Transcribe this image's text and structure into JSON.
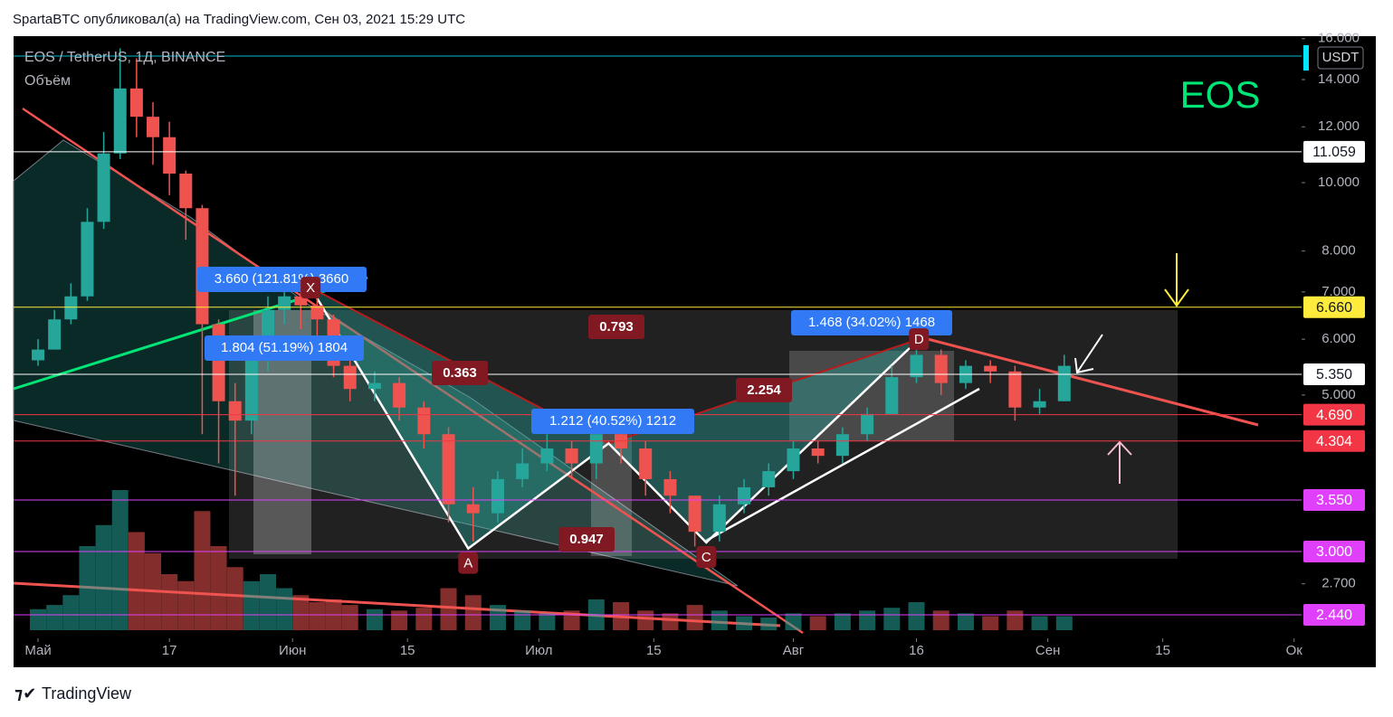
{
  "header": {
    "publisher": "SpartaBTC опубликовал(а) на TradingView.com, Сен 03, 2021 15:29 UTC",
    "footer": "TradingView"
  },
  "chart_data": {
    "type": "candlestick",
    "title": "EOS / TetherUS, 1Д, BINANCE",
    "subtitle": "Объём",
    "symbol_label": "EOS",
    "currency": "USDT",
    "log_scale": true,
    "grid": false,
    "up_color": "#26a69a",
    "down_color": "#ef5350",
    "xlim": [
      -2.98,
      153.91
    ],
    "ylim": [
      2.26,
      16.13
    ],
    "xticks": [
      {
        "value": 0,
        "label": "Май"
      },
      {
        "value": 16,
        "label": "17"
      },
      {
        "value": 31,
        "label": "Июн"
      },
      {
        "value": 45,
        "label": "15"
      },
      {
        "value": 61,
        "label": "Июл"
      },
      {
        "value": 75,
        "label": "15"
      },
      {
        "value": 92,
        "label": "Авг"
      },
      {
        "value": 107,
        "label": "16"
      },
      {
        "value": 123,
        "label": "Сен"
      },
      {
        "value": 137,
        "label": "15"
      },
      {
        "value": 153,
        "label": "Ок"
      }
    ],
    "yticks": [
      {
        "value": 16,
        "label": "16.000"
      },
      {
        "value": 14,
        "label": "14.000"
      },
      {
        "value": 12,
        "label": "12.000"
      },
      {
        "value": 10,
        "label": "10.000"
      },
      {
        "value": 8,
        "label": "8.000"
      },
      {
        "value": 7,
        "label": "7.000"
      },
      {
        "value": 6,
        "label": "6.000"
      },
      {
        "value": 5,
        "label": "5.000"
      },
      {
        "value": 2.7,
        "label": "2.700"
      }
    ],
    "x": [
      0,
      2,
      4,
      6,
      8,
      10,
      12,
      14,
      16,
      18,
      20,
      22,
      24,
      26,
      28,
      30,
      32,
      34,
      36,
      38,
      41,
      44,
      47,
      50,
      53,
      56,
      59,
      62,
      65,
      68,
      71,
      74,
      77,
      80,
      83,
      86,
      89,
      92,
      95,
      98,
      101,
      104,
      107,
      110,
      113,
      116,
      119,
      122,
      125
    ],
    "open": [
      5.6,
      5.8,
      6.4,
      6.9,
      8.8,
      11.0,
      13.6,
      12.4,
      11.6,
      10.3,
      9.2,
      6.3,
      4.9,
      4.6,
      5.6,
      6.6,
      6.9,
      6.7,
      6.4,
      5.5,
      5.1,
      5.2,
      4.8,
      4.4,
      3.5,
      3.4,
      3.8,
      4.0,
      4.2,
      4.0,
      4.4,
      4.2,
      3.8,
      3.6,
      3.2,
      3.5,
      3.7,
      3.9,
      4.2,
      4.1,
      4.4,
      4.7,
      5.3,
      5.7,
      5.2,
      5.5,
      5.4,
      4.8,
      4.9
    ],
    "high": [
      6.0,
      6.6,
      7.2,
      9.2,
      11.8,
      15.5,
      15.0,
      13.0,
      12.2,
      10.4,
      9.3,
      6.4,
      5.2,
      5.9,
      6.9,
      7.3,
      7.1,
      6.9,
      6.5,
      5.6,
      5.4,
      5.3,
      4.9,
      4.5,
      3.7,
      3.9,
      4.2,
      4.4,
      4.3,
      4.6,
      4.5,
      4.3,
      3.9,
      3.6,
      3.6,
      3.8,
      4.0,
      4.3,
      4.3,
      4.5,
      4.8,
      5.5,
      6.0,
      5.8,
      5.6,
      5.6,
      5.5,
      5.1,
      5.7
    ],
    "low": [
      5.5,
      5.8,
      6.3,
      6.8,
      8.6,
      10.8,
      11.6,
      10.6,
      9.6,
      8.3,
      4.4,
      4.0,
      3.6,
      4.4,
      5.4,
      6.3,
      6.2,
      6.0,
      5.3,
      4.9,
      4.9,
      4.6,
      4.2,
      3.3,
      3.1,
      3.3,
      3.7,
      3.9,
      3.8,
      3.8,
      4.0,
      3.6,
      3.4,
      3.05,
      3.1,
      3.4,
      3.6,
      3.8,
      4.0,
      4.0,
      4.3,
      4.7,
      5.2,
      5.0,
      5.1,
      5.2,
      4.6,
      4.7,
      4.9
    ],
    "close": [
      5.8,
      6.4,
      6.9,
      8.8,
      11.0,
      13.6,
      12.4,
      11.6,
      10.3,
      9.2,
      6.3,
      4.9,
      4.6,
      5.6,
      6.6,
      6.9,
      6.7,
      6.4,
      5.5,
      5.1,
      5.2,
      4.8,
      4.4,
      3.5,
      3.4,
      3.8,
      4.0,
      4.2,
      4.0,
      4.4,
      4.2,
      3.8,
      3.6,
      3.2,
      3.5,
      3.7,
      3.9,
      4.2,
      4.1,
      4.4,
      4.7,
      5.3,
      5.7,
      5.2,
      5.5,
      5.4,
      4.8,
      4.9,
      5.5
    ],
    "volume": [
      15,
      18,
      25,
      60,
      75,
      100,
      70,
      55,
      40,
      35,
      85,
      60,
      45,
      35,
      40,
      30,
      25,
      20,
      22,
      18,
      15,
      14,
      16,
      30,
      25,
      18,
      14,
      12,
      14,
      22,
      20,
      14,
      12,
      18,
      14,
      10,
      9,
      12,
      10,
      12,
      14,
      16,
      20,
      14,
      12,
      10,
      14,
      10,
      10
    ],
    "levels": [
      {
        "value": 11.059,
        "label": "11.059",
        "color": "#ffffff",
        "text_color": "#131722"
      },
      {
        "value": 6.66,
        "label": "6.660",
        "color": "#ffeb3b",
        "text_color": "#131722"
      },
      {
        "value": 5.35,
        "label": "5.350",
        "color": "#ffffff",
        "text_color": "#131722"
      },
      {
        "value": 4.69,
        "label": "4.690",
        "color": "#f23645",
        "text_color": "#ffffff"
      },
      {
        "value": 4.304,
        "label": "4.304",
        "color": "#f23645",
        "text_color": "#ffffff"
      },
      {
        "value": 3.55,
        "label": "3.550",
        "color": "#e040fb",
        "text_color": "#ffffff"
      },
      {
        "value": 3.0,
        "label": "3.000",
        "color": "#e040fb",
        "text_color": "#ffffff"
      },
      {
        "value": 2.44,
        "label": "2.440",
        "color": "#e040fb",
        "text_color": "#ffffff"
      }
    ],
    "pattern": {
      "points": [
        {
          "label": "X",
          "x": 33.2,
          "price": 7.1
        },
        {
          "label": "A",
          "x": 52.4,
          "price": 3.03
        },
        {
          "label": null,
          "x": 69.5,
          "price": 4.27
        },
        {
          "label": "C",
          "x": 81.4,
          "price": 3.09
        },
        {
          "label": "D",
          "x": 107.3,
          "price": 6.0
        }
      ],
      "ratios": [
        "0.363",
        "0.793",
        "0.947",
        "2.254"
      ],
      "measures": [
        "3.660 (121.81%) 3660",
        "1.804 (51.19%) 1804",
        "1.212 (40.52%) 1212",
        "1.468 (34.02%) 1468"
      ]
    }
  }
}
